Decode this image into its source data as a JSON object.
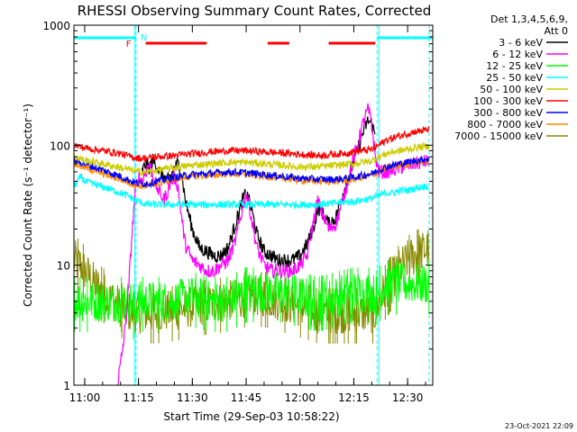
{
  "chart_data": {
    "type": "line",
    "title": "RHESSI Observing Summary Count Rates, Corrected",
    "ylabel": "Corrected Count Rate (s⁻¹ detector⁻¹)",
    "xlabel": "Start Time (29-Sep-03 10:58:22)",
    "yscale": "log",
    "ylim": [
      1,
      1000
    ],
    "xlim_minutes": [
      -3,
      97
    ],
    "x_tick_minutes": [
      0,
      15,
      30,
      45,
      60,
      75,
      90
    ],
    "x_tick_labels": [
      "11:00",
      "11:15",
      "11:30",
      "11:45",
      "12:00",
      "12:15",
      "12:30"
    ],
    "y_tick_values": [
      1,
      10,
      100,
      1000
    ],
    "y_tick_labels": [
      "1",
      "10",
      "100",
      "1000"
    ],
    "legend_header": [
      "Det 1,3,4,5,6,9,",
      "Att 0"
    ],
    "night_bars": [
      {
        "label": "N",
        "start": -3,
        "end": 14.3,
        "color": "#00ffff"
      },
      {
        "label": "",
        "start": 81.5,
        "end": 97,
        "color": "#00ffff"
      }
    ],
    "night_lines": [
      14.3,
      81.5
    ],
    "saa_solid_line": 14.0,
    "flare_marker_label": "F",
    "flare_bars": [
      [
        17,
        34
      ],
      [
        51,
        57
      ],
      [
        68,
        81
      ]
    ],
    "series": [
      {
        "name": "3 - 6 keV",
        "color": "#000000",
        "x": [
          16,
          17,
          18,
          19,
          20,
          21,
          22,
          23,
          24,
          25,
          26,
          27,
          28,
          30,
          32,
          34,
          36,
          38,
          40,
          42,
          44,
          45,
          46,
          47,
          48,
          50,
          52,
          54,
          56,
          58,
          60,
          62,
          63,
          64,
          65,
          66,
          68,
          70,
          72,
          74,
          76,
          78,
          79,
          80,
          81
        ],
        "y": [
          60,
          70,
          65,
          75,
          68,
          60,
          55,
          50,
          55,
          65,
          70,
          60,
          35,
          20,
          14,
          13,
          12,
          12,
          14,
          22,
          35,
          40,
          33,
          25,
          18,
          13,
          12,
          11,
          11,
          11,
          12,
          15,
          18,
          22,
          30,
          28,
          22,
          25,
          40,
          60,
          90,
          140,
          160,
          150,
          120
        ]
      },
      {
        "name": "6 - 12 keV",
        "color": "#ff00ff",
        "x": [
          9,
          10,
          11,
          12,
          13,
          14,
          15,
          16,
          17,
          18,
          19,
          20,
          21,
          22,
          23,
          24,
          25,
          26,
          27,
          28,
          30,
          32,
          34,
          36,
          38,
          40,
          42,
          44,
          45,
          46,
          47,
          48,
          50,
          52,
          54,
          56,
          58,
          60,
          62,
          63,
          64,
          65,
          66,
          68,
          70,
          72,
          74,
          76,
          78,
          79,
          80,
          81,
          82,
          84,
          86,
          88,
          90,
          92,
          94,
          96
        ],
        "y": [
          1,
          1.5,
          2.5,
          5,
          15,
          40,
          55,
          50,
          60,
          70,
          55,
          45,
          40,
          35,
          40,
          50,
          55,
          45,
          25,
          15,
          11,
          10,
          9,
          9,
          10,
          11,
          16,
          30,
          40,
          30,
          20,
          14,
          10,
          9,
          9,
          9,
          9,
          10,
          12,
          18,
          25,
          35,
          28,
          20,
          22,
          35,
          60,
          100,
          170,
          200,
          150,
          80,
          60,
          60,
          62,
          65,
          68,
          70,
          72,
          74
        ]
      },
      {
        "name": "12 - 25 keV",
        "color": "#00ff00",
        "x": [
          -3,
          0,
          5,
          10,
          13,
          14,
          15,
          20,
          25,
          30,
          35,
          40,
          45,
          50,
          55,
          60,
          65,
          70,
          75,
          80,
          81,
          82,
          84,
          86,
          88,
          90,
          92,
          94,
          96
        ],
        "y": [
          5,
          5,
          5,
          5,
          5,
          4,
          5,
          5,
          5,
          5.5,
          5,
          5,
          6,
          6,
          6,
          5.5,
          5,
          5.5,
          6,
          6,
          5.5,
          6,
          7,
          7,
          7,
          7,
          7,
          7,
          7
        ]
      },
      {
        "name": "25 - 50 keV",
        "color": "#00ffff",
        "x": [
          -3,
          -1,
          0,
          2,
          4,
          6,
          8,
          10,
          12,
          14,
          16,
          18,
          20,
          25,
          30,
          35,
          40,
          45,
          50,
          55,
          60,
          65,
          70,
          75,
          80,
          82,
          84,
          86,
          88,
          90,
          92,
          94,
          96
        ],
        "y": [
          45,
          55,
          50,
          48,
          46,
          44,
          42,
          40,
          38,
          35,
          33,
          32,
          32,
          32,
          32,
          32,
          32,
          32,
          32,
          32,
          32,
          32,
          33,
          34,
          36,
          38,
          40,
          40,
          42,
          42,
          44,
          45,
          46
        ]
      },
      {
        "name": "50 - 100 keV",
        "color": "#cccc00",
        "x": [
          -3,
          0,
          5,
          10,
          13,
          15,
          18,
          20,
          25,
          30,
          35,
          40,
          45,
          50,
          55,
          60,
          65,
          70,
          75,
          80,
          82,
          84,
          86,
          88,
          90,
          92,
          94,
          96
        ],
        "y": [
          80,
          75,
          70,
          65,
          62,
          60,
          60,
          62,
          65,
          68,
          70,
          72,
          72,
          70,
          68,
          66,
          66,
          68,
          70,
          74,
          80,
          85,
          88,
          90,
          92,
          95,
          97,
          98
        ]
      },
      {
        "name": "100 - 300 keV",
        "color": "#ff0000",
        "x": [
          -3,
          0,
          5,
          10,
          13,
          15,
          18,
          20,
          25,
          30,
          35,
          40,
          45,
          50,
          55,
          60,
          65,
          70,
          75,
          80,
          82,
          84,
          86,
          88,
          90,
          92,
          94,
          96
        ],
        "y": [
          100,
          95,
          90,
          85,
          80,
          78,
          78,
          80,
          82,
          85,
          88,
          90,
          90,
          88,
          86,
          84,
          82,
          84,
          88,
          92,
          100,
          110,
          115,
          120,
          125,
          130,
          132,
          135
        ]
      },
      {
        "name": "300 - 800 keV",
        "color": "#0000ff",
        "x": [
          -3,
          0,
          5,
          10,
          13,
          15,
          18,
          20,
          25,
          30,
          35,
          40,
          45,
          50,
          55,
          60,
          65,
          70,
          75,
          80,
          82,
          84,
          86,
          88,
          90,
          92,
          94,
          96
        ],
        "y": [
          75,
          70,
          62,
          55,
          50,
          48,
          48,
          50,
          54,
          57,
          58,
          60,
          59,
          57,
          55,
          53,
          52,
          52,
          54,
          58,
          62,
          66,
          68,
          70,
          72,
          74,
          76,
          77
        ]
      },
      {
        "name": "800 - 7000 keV",
        "color": "#ff8800",
        "x": [
          -3,
          0,
          5,
          10,
          13,
          15,
          18,
          20,
          25,
          30,
          35,
          40,
          45,
          50,
          55,
          60,
          65,
          70,
          75,
          80,
          82,
          84,
          86,
          88,
          90,
          92,
          94,
          96
        ],
        "y": [
          70,
          65,
          58,
          52,
          48,
          46,
          46,
          48,
          52,
          55,
          56,
          58,
          57,
          55,
          53,
          51,
          50,
          50,
          52,
          56,
          60,
          64,
          66,
          68,
          70,
          72,
          73,
          74
        ]
      },
      {
        "name": "7000 - 15000 keV",
        "color": "#888800",
        "x": [
          -3,
          -1,
          0,
          2,
          5,
          8,
          10,
          13,
          15,
          20,
          25,
          30,
          35,
          40,
          45,
          50,
          55,
          60,
          65,
          70,
          75,
          80,
          81,
          82,
          84,
          86,
          88,
          90,
          92,
          94,
          96
        ],
        "y": [
          11,
          10,
          9,
          7.5,
          6,
          5,
          4.5,
          4,
          4,
          4,
          4.2,
          4.5,
          4.8,
          5,
          5.5,
          5.5,
          5,
          4.5,
          4,
          4,
          4,
          4,
          4,
          5,
          6.5,
          8,
          9.5,
          11,
          12,
          13,
          14
        ]
      }
    ]
  },
  "footer_date": "23-Oct-2021 22:09"
}
